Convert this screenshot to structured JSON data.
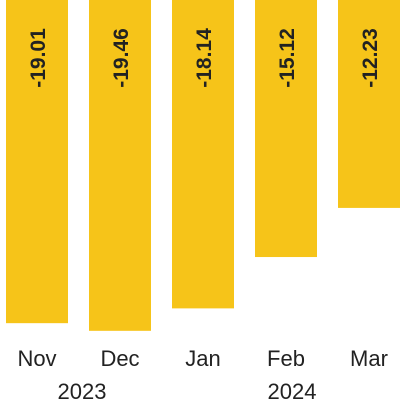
{
  "chart_data": {
    "type": "bar",
    "categories": [
      "Nov",
      "Dec",
      "Jan",
      "Feb",
      "Mar"
    ],
    "values": [
      -19.01,
      -19.46,
      -18.14,
      -15.12,
      -12.23
    ],
    "value_labels": [
      "-19.01",
      "-19.46",
      "-18.14",
      "-15.12",
      "-12.23"
    ],
    "year_labels": [
      {
        "text": "2023",
        "under": [
          "Nov",
          "Dec"
        ]
      },
      {
        "text": "2024",
        "under": [
          "Jan",
          "Feb",
          "Mar"
        ]
      }
    ],
    "title": "",
    "xlabel": "",
    "ylabel": "",
    "grid": false,
    "legend": "none",
    "colors": {
      "bar": "#F6C419",
      "text": "#222222"
    }
  }
}
